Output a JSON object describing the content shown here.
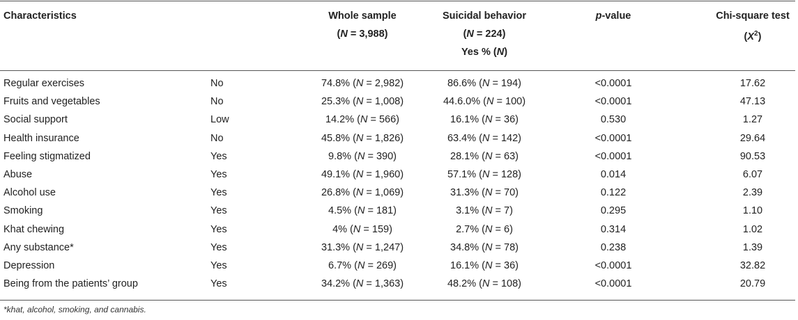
{
  "table": {
    "headers": {
      "characteristics": "Characteristics",
      "whole_sample": {
        "line1": "Whole sample",
        "n_label": "N",
        "n_value": " = 3,988)"
      },
      "suicidal_behavior": {
        "line1": "Suicidal behavior",
        "n_label": "N",
        "n_value": " = 224)",
        "line3_prefix": "Yes % (",
        "line3_label": "N",
        "line3_suffix": ")"
      },
      "p_value": {
        "italic": "p",
        "rest": "-value"
      },
      "chi_square": {
        "line1": "Chi-square test",
        "symbol": "X",
        "sup": "2"
      }
    },
    "rows": [
      {
        "characteristic": "Regular exercises",
        "category": "No",
        "whole_pct": "74.8%",
        "whole_n": "2,982",
        "sb_pct": "86.6%",
        "sb_n": "194",
        "p": "<0.0001",
        "chi": "17.62"
      },
      {
        "characteristic": "Fruits and vegetables",
        "category": "No",
        "whole_pct": "25.3%",
        "whole_n": "1,008",
        "sb_pct": "44.6.0%",
        "sb_n": "100",
        "p": "<0.0001",
        "chi": "47.13"
      },
      {
        "characteristic": "Social support",
        "category": "Low",
        "whole_pct": "14.2%",
        "whole_n": "566",
        "sb_pct": "16.1%",
        "sb_n": "36",
        "p": "0.530",
        "chi": "1.27"
      },
      {
        "characteristic": "Health insurance",
        "category": "No",
        "whole_pct": "45.8%",
        "whole_n": "1,826",
        "sb_pct": "63.4%",
        "sb_n": "142",
        "p": "<0.0001",
        "chi": "29.64"
      },
      {
        "characteristic": "Feeling stigmatized",
        "category": "Yes",
        "whole_pct": "9.8%",
        "whole_n": "390",
        "sb_pct": "28.1%",
        "sb_n": "63",
        "p": "<0.0001",
        "chi": "90.53"
      },
      {
        "characteristic": "Abuse",
        "category": "Yes",
        "whole_pct": "49.1%",
        "whole_n": "1,960",
        "sb_pct": "57.1%",
        "sb_n": "128",
        "p": "0.014",
        "chi": "6.07"
      },
      {
        "characteristic": "Alcohol use",
        "category": "Yes",
        "whole_pct": "26.8%",
        "whole_n": "1,069",
        "sb_pct": "31.3%",
        "sb_n": "70",
        "p": "0.122",
        "chi": "2.39"
      },
      {
        "characteristic": "Smoking",
        "category": "Yes",
        "whole_pct": "4.5%",
        "whole_n": "181",
        "sb_pct": "3.1%",
        "sb_n": "7",
        "p": "0.295",
        "chi": "1.10"
      },
      {
        "characteristic": "Khat chewing",
        "category": "Yes",
        "whole_pct": "4%",
        "whole_n": "159",
        "sb_pct": "2.7%",
        "sb_n": "6",
        "p": "0.314",
        "chi": "1.02"
      },
      {
        "characteristic": "Any substance*",
        "category": "Yes",
        "whole_pct": "31.3%",
        "whole_n": "1,247",
        "sb_pct": "34.8%",
        "sb_n": "78",
        "p": "0.238",
        "chi": "1.39"
      },
      {
        "characteristic": "Depression",
        "category": "Yes",
        "whole_pct": "6.7%",
        "whole_n": "269",
        "sb_pct": "16.1%",
        "sb_n": "36",
        "p": "<0.0001",
        "chi": "32.82"
      },
      {
        "characteristic": "Being from the patients’ group",
        "category": "Yes",
        "whole_pct": "34.2%",
        "whole_n": "1,363",
        "sb_pct": "48.2%",
        "sb_n": "108",
        "p": "<0.0001",
        "chi": "20.79"
      }
    ],
    "footnote": "*khat, alcohol, smoking, and cannabis."
  }
}
